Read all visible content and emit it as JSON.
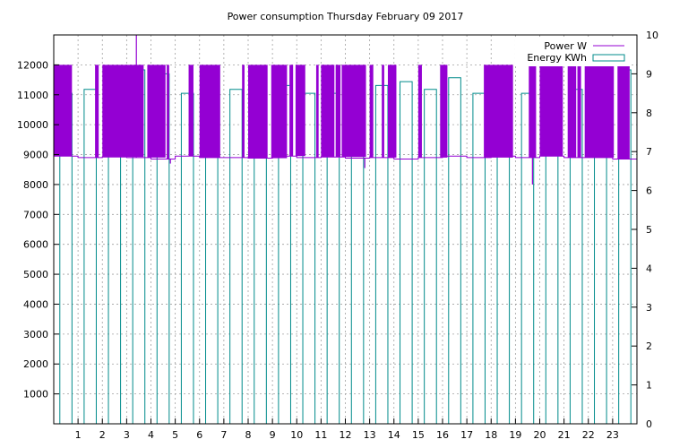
{
  "chart_data": {
    "type": "bar",
    "title": "Power consumption Thursday February 09 2017",
    "xlabel": "",
    "ylabel": "",
    "x_ticks": [
      "1",
      "2",
      "3",
      "4",
      "5",
      "6",
      "7",
      "8",
      "9",
      "10",
      "11",
      "12",
      "13",
      "14",
      "15",
      "16",
      "17",
      "18",
      "19",
      "20",
      "21",
      "22",
      "23"
    ],
    "x_range": [
      0,
      24
    ],
    "y_left_range": [
      0,
      13000
    ],
    "y_left_ticks": [
      1000,
      2000,
      3000,
      4000,
      5000,
      6000,
      7000,
      8000,
      9000,
      10000,
      11000,
      12000
    ],
    "y_right_range": [
      0,
      10
    ],
    "y_right_ticks": [
      0,
      1,
      2,
      3,
      4,
      5,
      6,
      7,
      8,
      9,
      10
    ],
    "grid": true,
    "legend_position": "top-right",
    "series": [
      {
        "name": "Power W",
        "axis": "left",
        "color": "#9400d3",
        "style": "line",
        "baseline": [
          8950,
          8900,
          8920,
          8900,
          8850,
          8950,
          8900,
          8900,
          8880,
          8950,
          8900,
          8920,
          8880,
          8900,
          8850,
          8900,
          8950,
          8900,
          8950,
          8900,
          8950,
          8900,
          8900,
          8850
        ],
        "high_bands": [
          [
            0.0,
            0.75
          ],
          [
            1.7,
            1.85
          ],
          [
            2.0,
            3.7
          ],
          [
            3.85,
            4.6
          ],
          [
            4.65,
            4.75
          ],
          [
            5.55,
            5.75
          ],
          [
            6.0,
            6.85
          ],
          [
            7.75,
            7.85
          ],
          [
            8.0,
            8.8
          ],
          [
            8.95,
            9.6
          ],
          [
            9.7,
            9.85
          ],
          [
            9.95,
            10.35
          ],
          [
            10.8,
            10.9
          ],
          [
            11.0,
            11.55
          ],
          [
            11.6,
            11.8
          ],
          [
            11.85,
            12.85
          ],
          [
            13.0,
            13.15
          ],
          [
            13.5,
            13.6
          ],
          [
            13.75,
            14.1
          ],
          [
            15.0,
            15.15
          ],
          [
            15.9,
            16.2
          ],
          [
            17.7,
            18.9
          ],
          [
            19.55,
            19.85
          ],
          [
            20.0,
            20.95
          ],
          [
            21.15,
            21.5
          ],
          [
            21.55,
            21.7
          ],
          [
            21.85,
            23.05
          ],
          [
            23.2,
            23.7
          ]
        ],
        "high_value": 12000,
        "spikes": [
          {
            "x": 3.4,
            "value": 13000
          },
          {
            "x": 4.8,
            "value": 8700
          },
          {
            "x": 12.8,
            "value": 8550
          },
          {
            "x": 19.7,
            "value": 8000
          }
        ]
      },
      {
        "name": "Energy KWh",
        "axis": "right",
        "color": "#008b8b",
        "style": "histogram",
        "values": [
          8.5,
          8.6,
          8.9,
          9.1,
          9.0,
          8.5,
          8.9,
          8.6,
          8.7,
          8.7,
          8.5,
          8.5,
          9.0,
          8.7,
          8.8,
          8.6,
          8.9,
          8.5,
          8.9,
          8.5,
          8.7,
          8.6,
          8.7,
          9.1
        ]
      }
    ]
  }
}
